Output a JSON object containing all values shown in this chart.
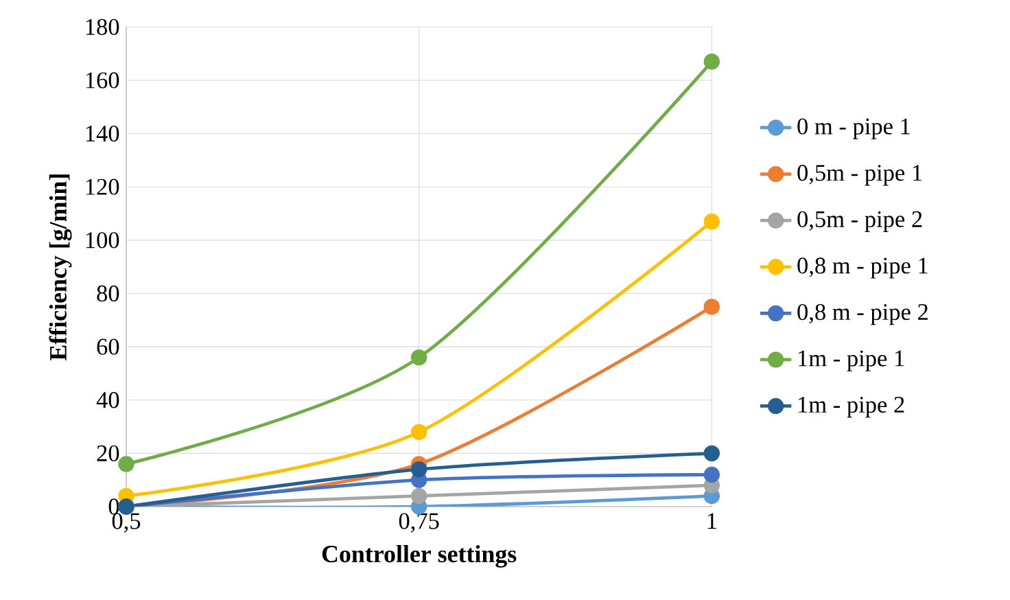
{
  "chart_data": {
    "type": "line",
    "xlabel": "Controller settings",
    "ylabel": "Efficiency [g/min]",
    "categories": [
      "0,5",
      "0,75",
      "1"
    ],
    "ylim": [
      0,
      180
    ],
    "yticks": [
      0,
      20,
      40,
      60,
      80,
      100,
      120,
      140,
      160,
      180
    ],
    "grid": true,
    "legend": "right",
    "marker": "circle",
    "line_style": "solid",
    "series": [
      {
        "name": "0 m - pipe 1",
        "color": "#5b9bd5",
        "values": [
          0,
          0,
          4
        ]
      },
      {
        "name": "0,5m - pipe 1",
        "color": "#ed7d31",
        "values": [
          0,
          16,
          75
        ]
      },
      {
        "name": "0,5m - pipe 2",
        "color": "#a5a5a5",
        "values": [
          0,
          4,
          8
        ]
      },
      {
        "name": "0,8 m - pipe 1",
        "color": "#ffc000",
        "values": [
          4,
          28,
          107
        ]
      },
      {
        "name": "0,8 m - pipe 2",
        "color": "#4472c4",
        "values": [
          0,
          10,
          12
        ]
      },
      {
        "name": "1m - pipe 1",
        "color": "#70ad47",
        "values": [
          16,
          56,
          167
        ]
      },
      {
        "name": "1m - pipe 2",
        "color": "#255e91",
        "values": [
          0,
          14,
          20
        ]
      }
    ]
  }
}
